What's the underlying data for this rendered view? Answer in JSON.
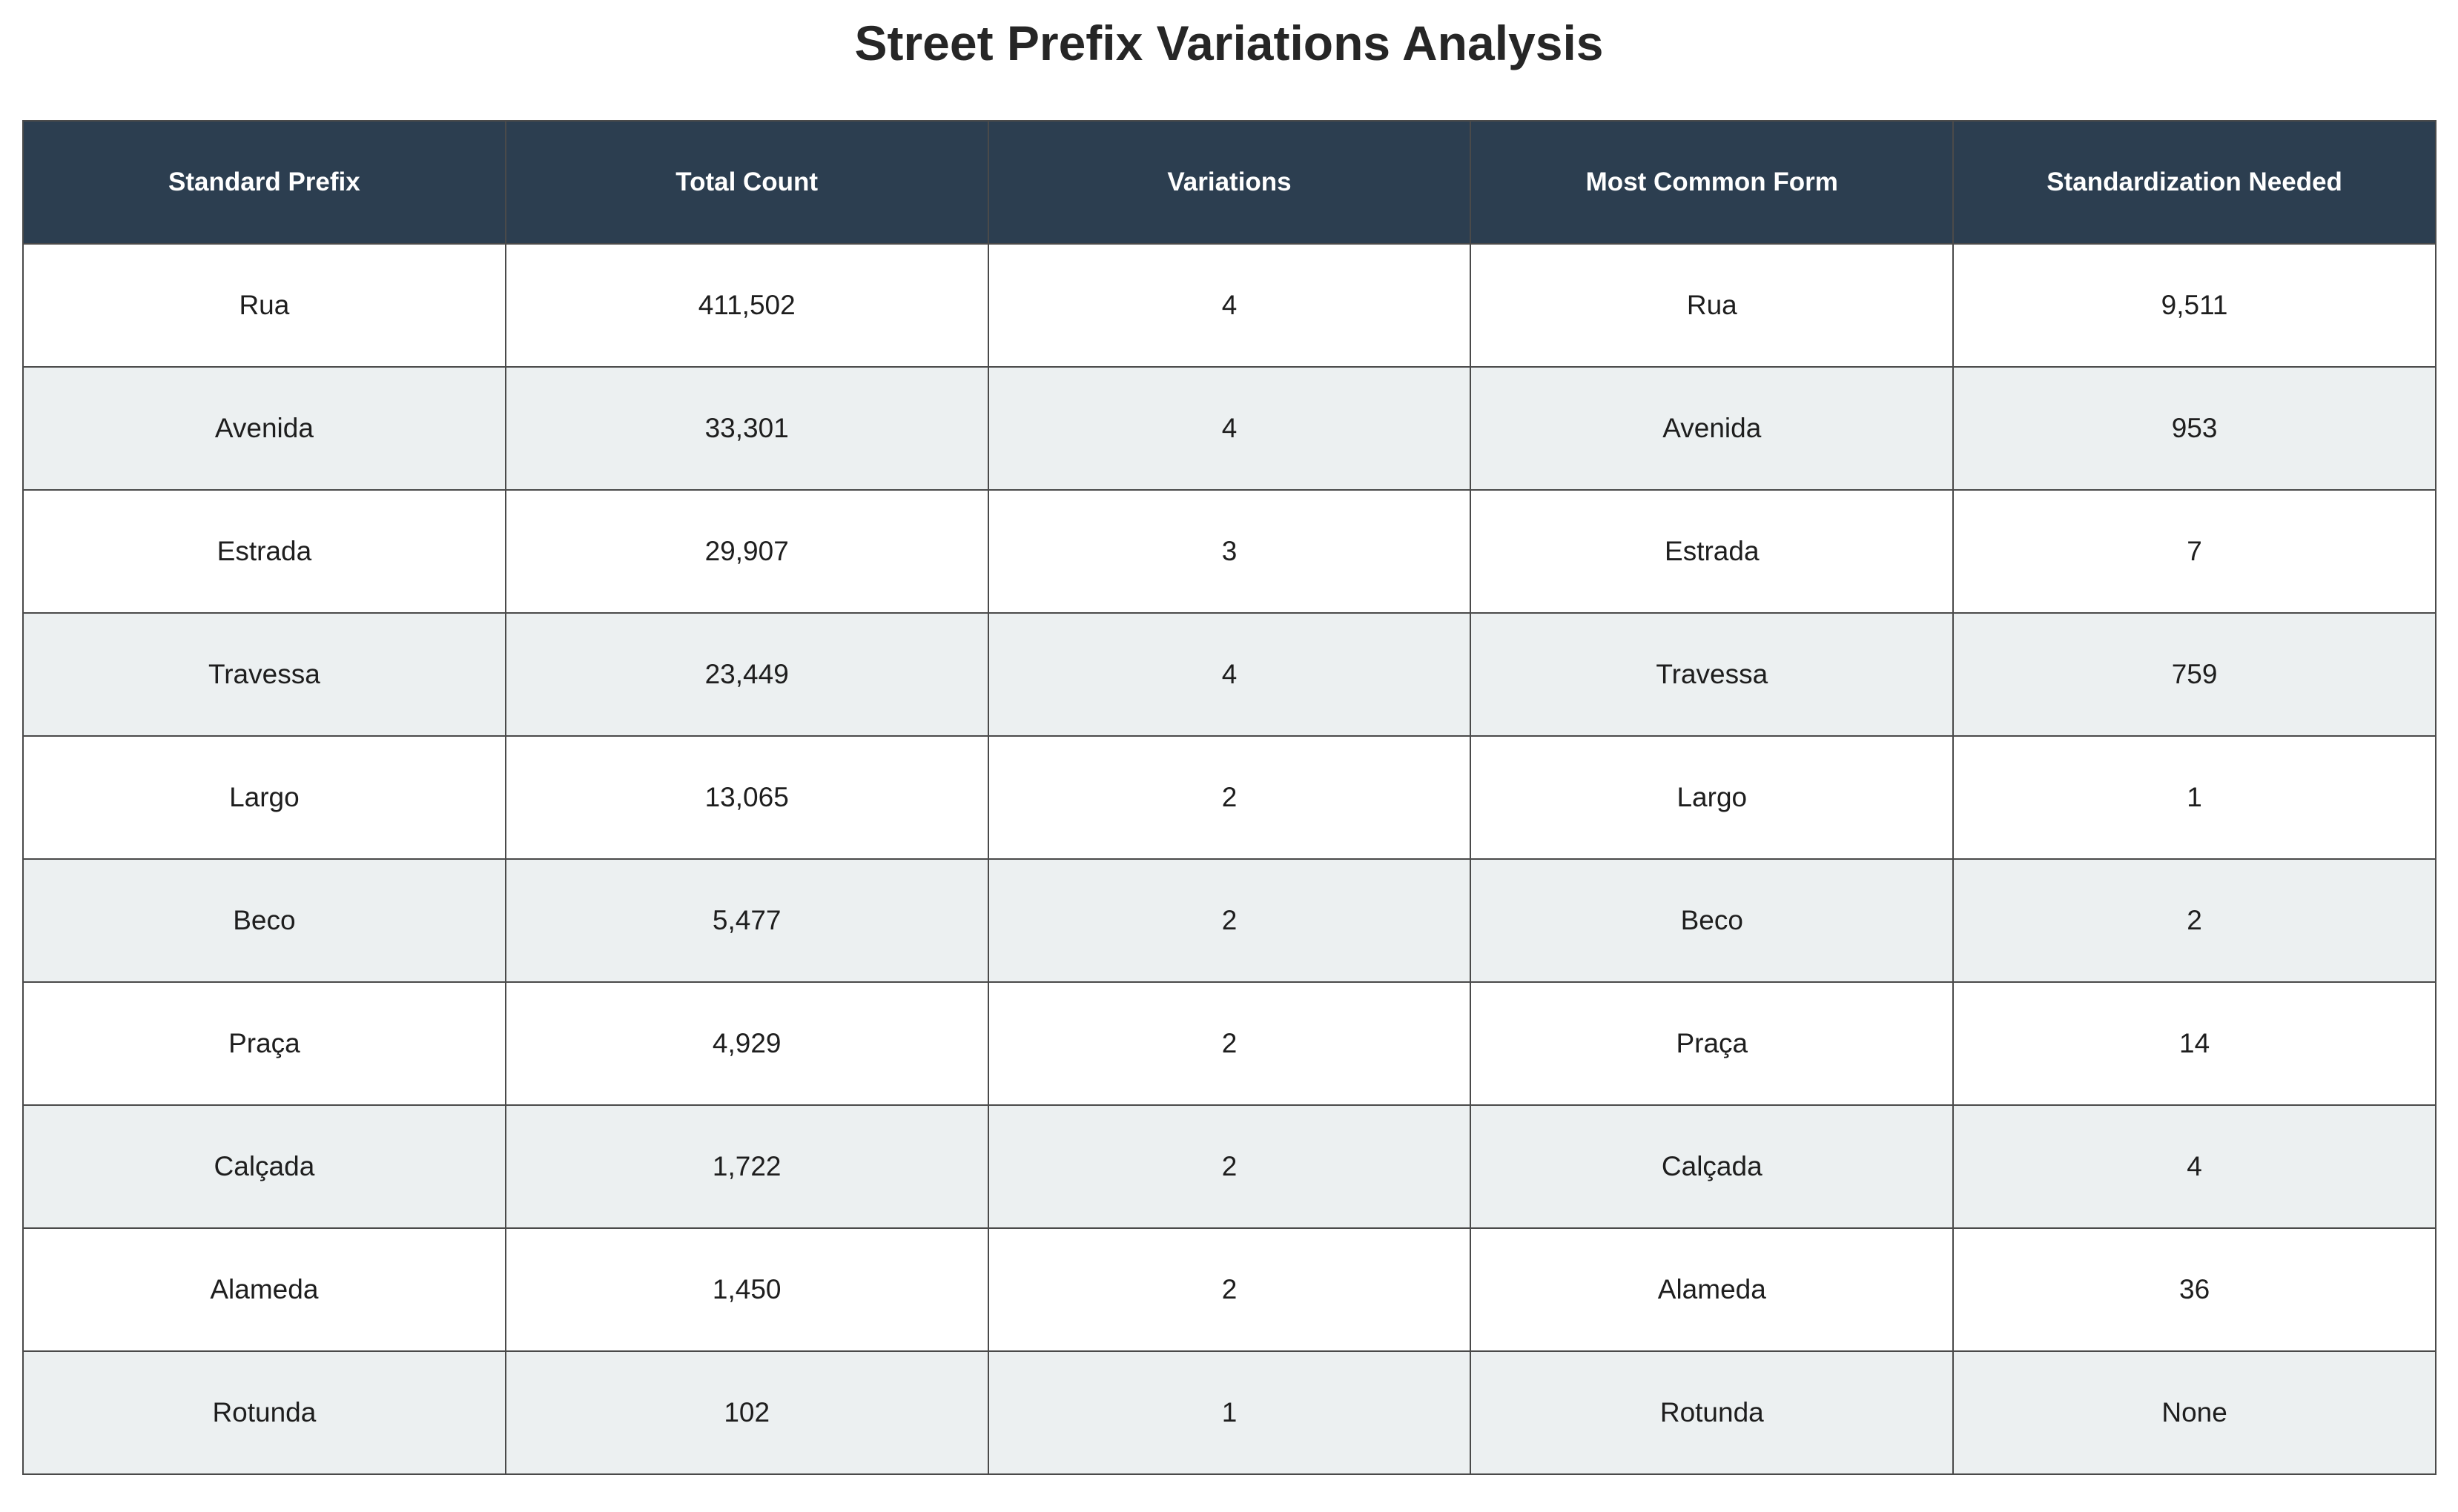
{
  "chart_data": {
    "type": "table",
    "title": "Street Prefix Variations Analysis",
    "columns": [
      "Standard Prefix",
      "Total Count",
      "Variations",
      "Most Common Form",
      "Standardization Needed"
    ],
    "rows": [
      [
        "Rua",
        "411,502",
        "4",
        "Rua",
        "9,511"
      ],
      [
        "Avenida",
        "33,301",
        "4",
        "Avenida",
        "953"
      ],
      [
        "Estrada",
        "29,907",
        "3",
        "Estrada",
        "7"
      ],
      [
        "Travessa",
        "23,449",
        "4",
        "Travessa",
        "759"
      ],
      [
        "Largo",
        "13,065",
        "2",
        "Largo",
        "1"
      ],
      [
        "Beco",
        "5,477",
        "2",
        "Beco",
        "2"
      ],
      [
        "Praça",
        "4,929",
        "2",
        "Praça",
        "14"
      ],
      [
        "Calçada",
        "1,722",
        "2",
        "Calçada",
        "4"
      ],
      [
        "Alameda",
        "1,450",
        "2",
        "Alameda",
        "36"
      ],
      [
        "Rotunda",
        "102",
        "1",
        "Rotunda",
        "None"
      ]
    ]
  },
  "colors": {
    "header_bg": "#2c3e50",
    "header_text": "#ffffff",
    "row_even_bg": "#ffffff",
    "row_odd_bg": "#ecf0f1",
    "border": "#4a4a4a"
  }
}
